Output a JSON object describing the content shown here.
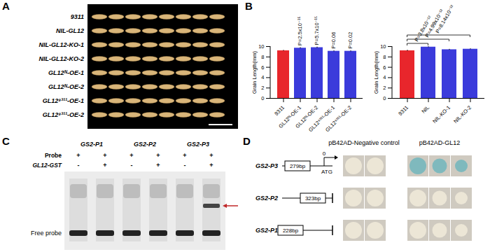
{
  "panel_a": {
    "label": "A",
    "rows": [
      "9311",
      "NIL-GL12",
      "NIL-GL12-KO-1",
      "NIL-GL12-KO-2",
      "GL12ᴺ-OE-1",
      "GL12ᴺ-OE-2",
      "GL12⁹³¹¹-OE-1",
      "GL12⁹³¹¹-OE-2"
    ]
  },
  "panel_b": {
    "label": "B"
  },
  "chart_data": [
    {
      "type": "bar",
      "y_label": "Grain Length(mm)",
      "categories": [
        "9311",
        "GL12ᴺ-OE-1",
        "GL12ᴺ-OE-2",
        "GL12⁹³¹¹-OE-1",
        "GL12⁹³¹¹-OE-2"
      ],
      "values": [
        9.2,
        9.7,
        9.8,
        9.1,
        9.1
      ],
      "errors": [
        0.08,
        0.1,
        0.1,
        0.08,
        0.08
      ],
      "colors": [
        "#e8262c",
        "#3b3bdb",
        "#3b3bdb",
        "#3b3bdb",
        "#3b3bdb"
      ],
      "p_values": [
        null,
        "P=2.5x10⁻¹⁵",
        "P=5.7x10⁻¹⁵",
        "P=0.06",
        "P=0.02"
      ],
      "ylim": [
        0,
        10
      ],
      "yticks": [
        0,
        2,
        4,
        6,
        8,
        10
      ]
    },
    {
      "type": "bar",
      "y_label": "Grain Length(mm)",
      "categories": [
        "9311",
        "NIL",
        "NIL-KO-1",
        "NIL-KO-2"
      ],
      "values": [
        9.2,
        9.9,
        9.4,
        9.5
      ],
      "errors": [
        0.1,
        0.08,
        0.08,
        0.08
      ],
      "colors": [
        "#e8262c",
        "#3b3bdb",
        "#3b3bdb",
        "#3b3bdb"
      ],
      "comparisons": [
        {
          "from": "9311",
          "to": "NIL",
          "label": "P=3.8x10⁻¹²"
        },
        {
          "from": "9311",
          "to": "NIL-KO-1",
          "label": "P=4.99x10⁻¹²"
        },
        {
          "from": "9311",
          "to": "NIL-KO-2",
          "label": "P=8.14x10⁻¹²"
        }
      ],
      "ylim": [
        0,
        10
      ],
      "yticks": [
        0,
        2,
        4,
        6,
        8,
        10
      ]
    }
  ],
  "panel_c": {
    "label": "C",
    "groups": [
      "GS2-P1",
      "GS2-P2",
      "GS2-P3"
    ],
    "rows": [
      {
        "name": "Probe",
        "signs": [
          "+",
          "+",
          "+",
          "+",
          "+",
          "+"
        ]
      },
      {
        "name": "GL12-GST",
        "signs": [
          "-",
          "+",
          "-",
          "+",
          "-",
          "+"
        ]
      }
    ],
    "shifted_band_lane": 6,
    "free_probe_label": "Free probe"
  },
  "panel_d": {
    "label": "D",
    "header_negative": "pB42AD-Negative control",
    "header_gl12": "pB42AD-GL12",
    "start_label": "0",
    "atg_label": "ATG",
    "rows": [
      {
        "name": "GS2-P3",
        "fragment": "279bp",
        "start_codon": true,
        "negative_spots": 2,
        "gl12_spots": 3,
        "gl12_color": "#7fb9bd"
      },
      {
        "name": "GS2-P2",
        "fragment": "323bp",
        "start_codon": false,
        "negative_spots": 2,
        "gl12_spots": 3,
        "gl12_color": "#ece6d6"
      },
      {
        "name": "GS2-P1",
        "fragment": "228bp",
        "start_codon": false,
        "negative_spots": 2,
        "gl12_spots": 3,
        "gl12_color": "#ece6d6"
      }
    ]
  }
}
